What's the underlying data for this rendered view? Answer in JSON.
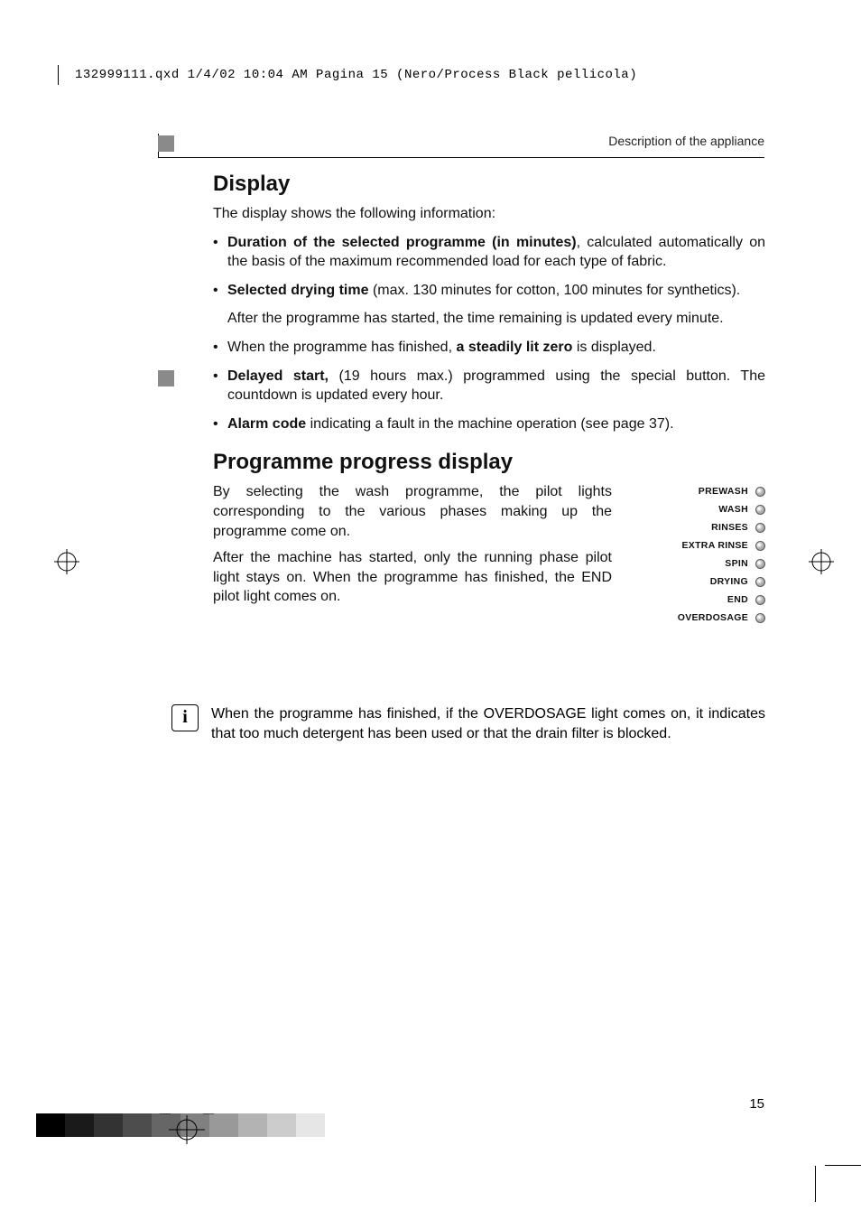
{
  "colors": {
    "text": "#000000",
    "rule": "#000000",
    "tab_gray": "#8a8a8a",
    "led_border": "#5b5b5b",
    "grayscale_bar": [
      "#000000",
      "#1a1a1a",
      "#333333",
      "#4d4d4d",
      "#666666",
      "#808080",
      "#999999",
      "#b3b3b3",
      "#cccccc",
      "#e6e6e6"
    ]
  },
  "typography": {
    "body_fontsize_pt": 12,
    "h2_fontsize_pt": 18,
    "indicator_fontsize_pt": 8,
    "mono_fontsize_pt": 10
  },
  "prepress": {
    "line": "132999111.qxd  1/4/02  10:04 AM  Pagina 15    (Nero/Process Black pellicola)"
  },
  "running_head": "Description of the appliance",
  "section_display": {
    "heading": "Display",
    "lead": "The display shows the following information:",
    "bullets": [
      {
        "html": "<strong>Duration of the selected programme (in minutes)</strong>, calculated automatically on the basis of the maximum recommended load for each type of fabric."
      },
      {
        "html": "<strong>Selected drying time</strong> (max. 130 minutes for cotton, 100 minutes for synthetics).",
        "after": "After the programme has started, the time remaining is updated every minute."
      },
      {
        "html": "When the programme has finished, <strong>a steadily lit zero</strong> is displayed."
      },
      {
        "html": "<strong>Delayed start,</strong> (19 hours max.) programmed using the special button. The countdown is updated every hour."
      },
      {
        "html": "<strong>Alarm code</strong> indicating a fault in the machine operation (see page 37)."
      }
    ]
  },
  "section_progress": {
    "heading": "Programme progress display",
    "para1": "By selecting the wash programme, the pilot lights corresponding to the various phases making up the programme come on.",
    "para2": "After the machine has started, only the running phase pilot light stays on. When the programme has finished, the END pilot light comes on.",
    "indicators": [
      "PREWASH",
      "WASH",
      "RINSES",
      "EXTRA RINSE",
      "SPIN",
      "DRYING",
      "END",
      "OVERDOSAGE"
    ]
  },
  "info_note": "When the programme has finished, if the OVERDOSAGE light comes on, it indicates that too much detergent has been used or that the drain filter is blocked.",
  "page_number": "15"
}
